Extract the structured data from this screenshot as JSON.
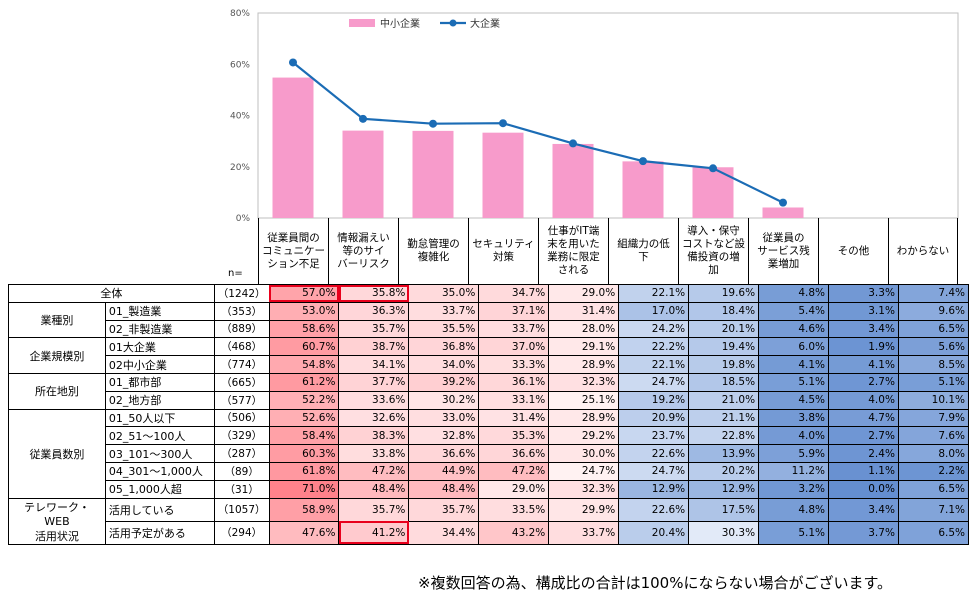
{
  "chart_data": {
    "type": "bar",
    "categories": [
      "従業員間のコミュニケーション不足",
      "情報漏えい等のサイバーリスク",
      "勤怠管理の複雑化",
      "セキュリティ対策",
      "仕事がIT端末を用いた業務に限定される",
      "組織力の低下",
      "導入・保守コストなど設備投資の増加",
      "従業員のサービス残業増加"
    ],
    "series": [
      {
        "name": "中小企業",
        "type": "bar",
        "color": "#f79bcb",
        "values": [
          54.8,
          34.1,
          34.0,
          33.3,
          28.9,
          22.1,
          19.8,
          4.1
        ]
      },
      {
        "name": "大企業",
        "type": "line",
        "color": "#1b6cb5",
        "values": [
          60.7,
          38.7,
          36.8,
          37.0,
          29.1,
          22.2,
          19.4,
          6.0
        ]
      }
    ],
    "ylim": [
      0,
      80
    ],
    "yticks": [
      "0%",
      "20%",
      "40%",
      "60%",
      "80%"
    ],
    "legend_position": "top"
  },
  "table": {
    "n_label": "n=",
    "headers": [
      "従業員間の\nコミュニケー\nション不足",
      "情報漏えい\n等のサイ\nバーリスク",
      "勤怠管理の\n複雑化",
      "セキュリティ\n対策",
      "仕事がIT端\n末を用いた\n業務に限定\nされる",
      "組織力の低\n下",
      "導入・保守\nコストなど設\n備投資の増\n加",
      "従業員の\nサービス残\n業増加",
      "その他",
      "わからない"
    ],
    "total_label": "全体",
    "total_n": "（1242）",
    "total_values": [
      "57.0%",
      "35.8%",
      "35.0%",
      "34.7%",
      "29.0%",
      "22.1%",
      "19.6%",
      "4.8%",
      "3.3%",
      "7.4%"
    ],
    "groups": [
      {
        "name": "業種別",
        "rows": [
          {
            "label": "01_製造業",
            "n": "（353）",
            "values": [
              "53.0%",
              "36.3%",
              "33.7%",
              "37.1%",
              "31.4%",
              "17.0%",
              "18.4%",
              "5.4%",
              "3.1%",
              "9.6%"
            ]
          },
          {
            "label": "02_非製造業",
            "n": "（889）",
            "values": [
              "58.6%",
              "35.7%",
              "35.5%",
              "33.7%",
              "28.0%",
              "24.2%",
              "20.1%",
              "4.6%",
              "3.4%",
              "6.5%"
            ]
          }
        ]
      },
      {
        "name": "企業規模別",
        "rows": [
          {
            "label": "01大企業",
            "n": "（468）",
            "values": [
              "60.7%",
              "38.7%",
              "36.8%",
              "37.0%",
              "29.1%",
              "22.2%",
              "19.4%",
              "6.0%",
              "1.9%",
              "5.6%"
            ]
          },
          {
            "label": "02中小企業",
            "n": "（774）",
            "values": [
              "54.8%",
              "34.1%",
              "34.0%",
              "33.3%",
              "28.9%",
              "22.1%",
              "19.8%",
              "4.1%",
              "4.1%",
              "8.5%"
            ]
          }
        ]
      },
      {
        "name": "所在地別",
        "rows": [
          {
            "label": "01_都市部",
            "n": "（665）",
            "values": [
              "61.2%",
              "37.7%",
              "39.2%",
              "36.1%",
              "32.3%",
              "24.7%",
              "18.5%",
              "5.1%",
              "2.7%",
              "5.1%"
            ]
          },
          {
            "label": "02_地方部",
            "n": "（577）",
            "values": [
              "52.2%",
              "33.6%",
              "30.2%",
              "33.1%",
              "25.1%",
              "19.2%",
              "21.0%",
              "4.5%",
              "4.0%",
              "10.1%"
            ]
          }
        ]
      },
      {
        "name": "従業員数別",
        "rows": [
          {
            "label": "01_50人以下",
            "n": "（506）",
            "values": [
              "52.6%",
              "32.6%",
              "33.0%",
              "31.4%",
              "28.9%",
              "20.9%",
              "21.1%",
              "3.8%",
              "4.7%",
              "7.9%"
            ]
          },
          {
            "label": "02_51～100人",
            "n": "（329）",
            "values": [
              "58.4%",
              "38.3%",
              "32.8%",
              "35.3%",
              "29.2%",
              "23.7%",
              "22.8%",
              "4.0%",
              "2.7%",
              "7.6%"
            ]
          },
          {
            "label": "03_101～300人",
            "n": "（287）",
            "values": [
              "60.3%",
              "33.8%",
              "36.6%",
              "36.6%",
              "30.0%",
              "22.6%",
              "13.9%",
              "5.9%",
              "2.4%",
              "8.0%"
            ]
          },
          {
            "label": "04_301～1,000人",
            "n": "（89）",
            "values": [
              "61.8%",
              "47.2%",
              "44.9%",
              "47.2%",
              "24.7%",
              "24.7%",
              "20.2%",
              "11.2%",
              "1.1%",
              "2.2%"
            ]
          },
          {
            "label": "05_1,000人超",
            "n": "（31）",
            "values": [
              "71.0%",
              "48.4%",
              "48.4%",
              "29.0%",
              "32.3%",
              "12.9%",
              "12.9%",
              "3.2%",
              "0.0%",
              "6.5%"
            ]
          }
        ]
      },
      {
        "name": "テレワーク・WEB\n活用状況",
        "rows": [
          {
            "label": "活用している",
            "n": "（1057）",
            "values": [
              "58.9%",
              "35.7%",
              "35.7%",
              "33.5%",
              "29.9%",
              "22.6%",
              "17.5%",
              "4.8%",
              "3.4%",
              "7.1%"
            ]
          },
          {
            "label": "活用予定がある",
            "n": "（294）",
            "values": [
              "47.6%",
              "41.2%",
              "34.4%",
              "43.2%",
              "33.7%",
              "20.4%",
              "30.3%",
              "5.1%",
              "3.7%",
              "6.5%"
            ]
          }
        ]
      }
    ]
  },
  "footnote": "※複数回答の為、構成比の合計は100%にならない場合がございます。"
}
